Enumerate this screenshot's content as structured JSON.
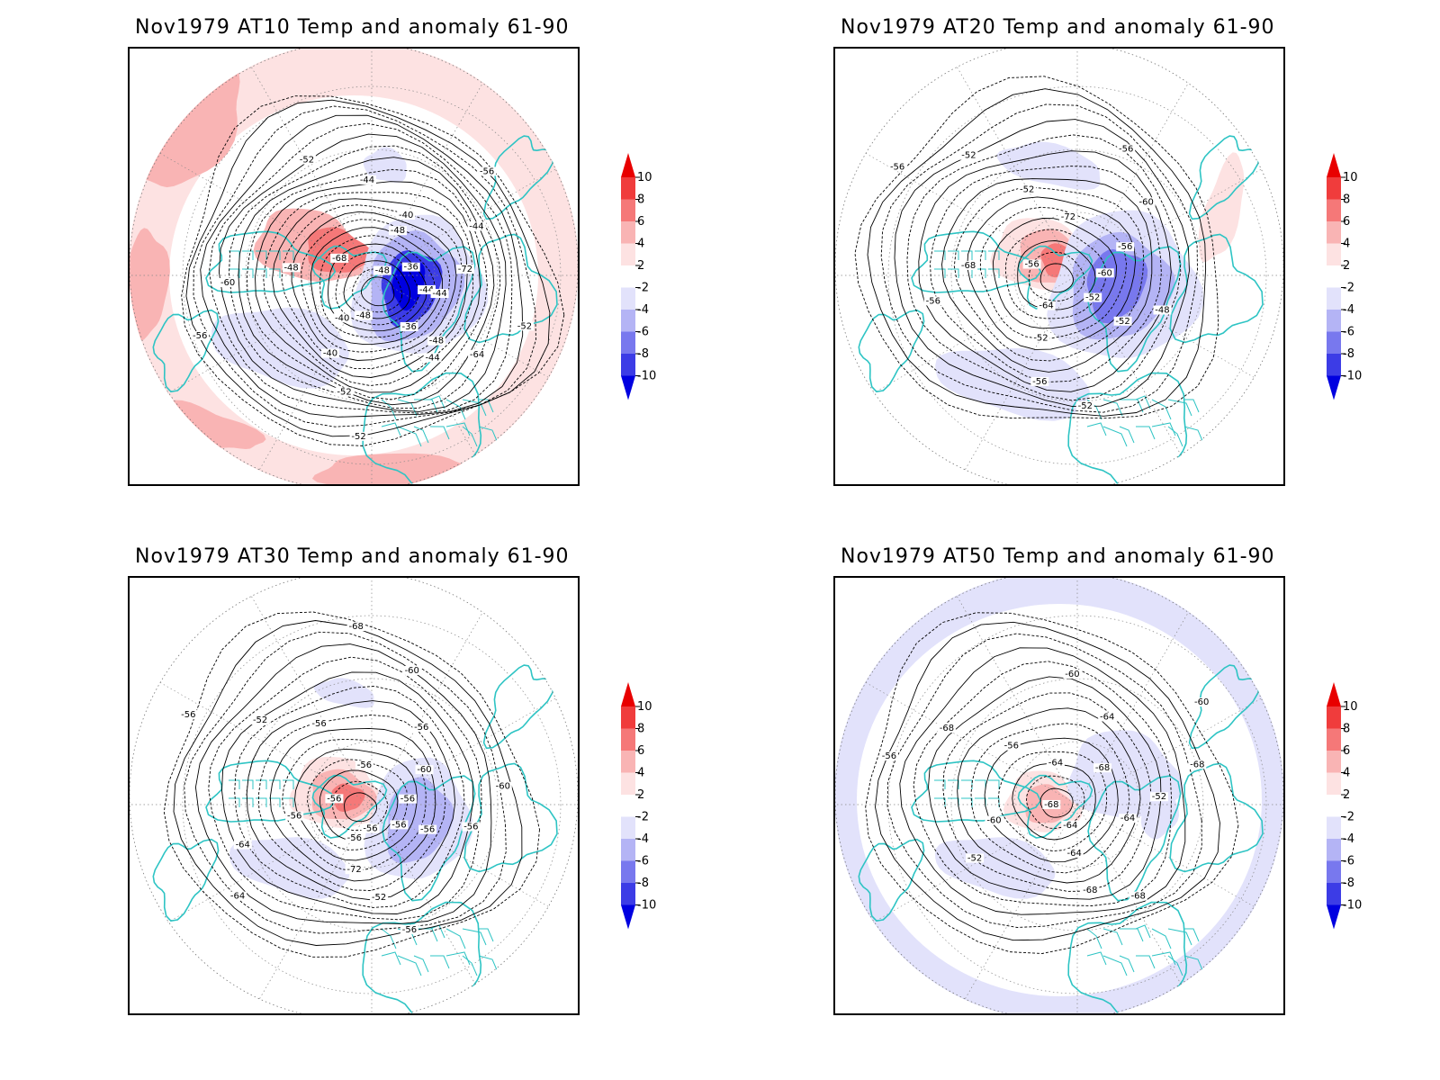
{
  "figure": {
    "panels": [
      {
        "id": "at10",
        "title": "Nov1979 AT10 Temp and anomaly 61-90",
        "contour_labels": [
          "-44",
          "-48",
          "-48",
          "-48",
          "-48",
          "-44",
          "-52",
          "-52",
          "-52",
          "-56",
          "-36",
          "-36",
          "-68",
          "-72",
          "-40",
          "-44",
          "-64",
          "-60",
          "-56",
          "-52",
          "-48",
          "-44",
          "-40",
          "-40",
          "-44"
        ],
        "anomaly_regions": [
          {
            "sign": "warm",
            "level": 2
          },
          {
            "sign": "warm",
            "level": 4
          },
          {
            "sign": "warm",
            "level": 6
          },
          {
            "sign": "cold",
            "level": -2
          },
          {
            "sign": "cold",
            "level": -4
          },
          {
            "sign": "cold",
            "level": -8
          },
          {
            "sign": "cold",
            "level": -10
          }
        ]
      },
      {
        "id": "at20",
        "title": "Nov1979 AT20 Temp and anomaly 61-90",
        "contour_labels": [
          "-52",
          "-56",
          "-56",
          "-52",
          "-52",
          "-48",
          "-56",
          "-56",
          "-52",
          "-56",
          "-60",
          "-64",
          "-72",
          "-52",
          "-68",
          "-60",
          "-56",
          "-52"
        ],
        "anomaly_regions": [
          {
            "sign": "warm",
            "level": 2
          },
          {
            "sign": "warm",
            "level": 4
          },
          {
            "sign": "warm",
            "level": 6
          },
          {
            "sign": "cold",
            "level": -2
          },
          {
            "sign": "cold",
            "level": -4
          },
          {
            "sign": "cold",
            "level": -6
          }
        ]
      },
      {
        "id": "at30",
        "title": "Nov1979 AT30 Temp and anomaly 61-90",
        "contour_labels": [
          "-56",
          "-56",
          "-56",
          "-56",
          "-56",
          "-52",
          "-52",
          "-60",
          "-64",
          "-68",
          "-56",
          "-56",
          "-60",
          "-72",
          "-56",
          "-56",
          "-64",
          "-60",
          "-56",
          "-56",
          "-56",
          "-56"
        ],
        "anomaly_regions": [
          {
            "sign": "warm",
            "level": 2
          },
          {
            "sign": "warm",
            "level": 4
          },
          {
            "sign": "warm",
            "level": 6
          },
          {
            "sign": "cold",
            "level": -2
          },
          {
            "sign": "cold",
            "level": -4
          }
        ]
      },
      {
        "id": "at50",
        "title": "Nov1979 AT50 Temp and anomaly 61-90",
        "contour_labels": [
          "-68",
          "-68",
          "-64",
          "-56",
          "-52",
          "-52",
          "-60",
          "-68",
          "-56",
          "-60",
          "-64",
          "-64",
          "-64",
          "-60",
          "-64",
          "-68",
          "-68",
          "-68"
        ],
        "anomaly_regions": [
          {
            "sign": "warm",
            "level": 2
          },
          {
            "sign": "warm",
            "level": 4
          },
          {
            "sign": "cold",
            "level": -2
          }
        ]
      }
    ],
    "colorbar": {
      "ticks": [
        "10",
        "8",
        "6",
        "4",
        "2",
        "-2",
        "-4",
        "-6",
        "-8",
        "-10"
      ],
      "colors": {
        "warm_10": "#e80000",
        "warm_8": "#f03c3c",
        "warm_6": "#f57878",
        "warm_4": "#f9b4b4",
        "warm_2": "#fde2e2",
        "neutral": "#ffffff",
        "cold_2": "#e2e2fb",
        "cold_4": "#b4b4f5",
        "cold_6": "#7878ee",
        "cold_8": "#3c3ce6",
        "cold_10": "#0000e0"
      }
    },
    "colors": {
      "coastline": "#2ec4c4",
      "contour": "#000000",
      "gridline": "#888888"
    }
  }
}
